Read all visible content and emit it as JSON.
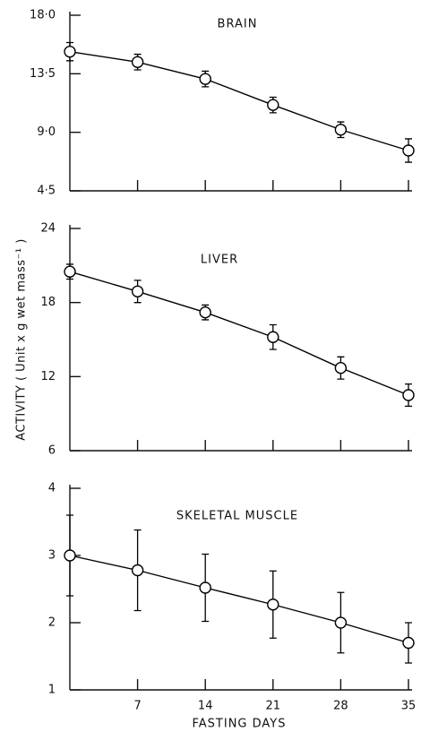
{
  "chart_data": [
    {
      "type": "line",
      "title": "BRAIN",
      "x": [
        0,
        7,
        14,
        21,
        28,
        35
      ],
      "xlim": [
        0,
        35
      ],
      "xticks": [
        7,
        14,
        21,
        28,
        35
      ],
      "ylim": [
        4.5,
        18
      ],
      "yticks": [
        {
          "value": 4.5,
          "label": "4·5"
        },
        {
          "value": 9,
          "label": "9·0"
        },
        {
          "value": 13.5,
          "label": "13·5"
        },
        {
          "value": 18,
          "label": "18·0"
        }
      ],
      "series": [
        {
          "color": "#000000",
          "values": [
            15.2,
            14.4,
            13.1,
            11.1,
            9.2,
            7.6
          ],
          "errors": [
            0.7,
            0.6,
            0.6,
            0.6,
            0.6,
            0.9
          ]
        }
      ]
    },
    {
      "type": "line",
      "title": "LIVER",
      "ylabel": "ACTIVITY ( Unit x g wet mass⁻¹ )",
      "x": [
        0,
        7,
        14,
        21,
        28,
        35
      ],
      "xlim": [
        0,
        35
      ],
      "xticks": [
        7,
        14,
        21,
        28,
        35
      ],
      "ylim": [
        6,
        24
      ],
      "yticks": [
        6,
        12,
        18,
        24
      ],
      "series": [
        {
          "color": "#000000",
          "values": [
            20.5,
            18.9,
            17.2,
            15.2,
            12.7,
            10.5
          ],
          "errors": [
            0.6,
            0.9,
            0.6,
            1.0,
            0.9,
            0.9
          ]
        }
      ]
    },
    {
      "type": "line",
      "title": "SKELETAL MUSCLE",
      "xlabel": "FASTING DAYS",
      "x": [
        0,
        7,
        14,
        21,
        28,
        35
      ],
      "xlim": [
        0,
        35
      ],
      "xticks": [
        7,
        14,
        21,
        28,
        35
      ],
      "ylim": [
        1,
        4
      ],
      "yticks": [
        1,
        2,
        3,
        4
      ],
      "series": [
        {
          "color": "#000000",
          "values": [
            3.0,
            2.78,
            2.52,
            2.27,
            2.0,
            1.7
          ],
          "errors": [
            0.6,
            0.6,
            0.5,
            0.5,
            0.45,
            0.3
          ]
        }
      ]
    }
  ]
}
